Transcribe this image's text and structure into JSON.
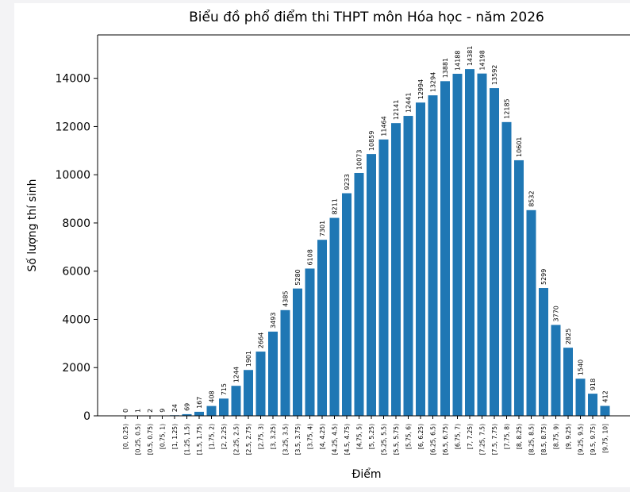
{
  "chart_data": {
    "type": "bar",
    "title": "Biểu đồ phổ điểm thi THPT môn Hóa học - năm 2026",
    "xlabel": "Điểm",
    "ylabel": "Số lượng thí sinh",
    "categories": [
      "[0, 0.25)",
      "[0.25, 0.5)",
      "[0.5, 0.75)",
      "[0.75, 1)",
      "[1, 1.25)",
      "[1.25, 1.5)",
      "[1.5, 1.75)",
      "[1.75, 2)",
      "[2, 2.25)",
      "[2.25, 2.5)",
      "[2.5, 2.75)",
      "[2.75, 3)",
      "[3, 3.25)",
      "[3.25, 3.5)",
      "[3.5, 3.75)",
      "[3.75, 4)",
      "[4, 4.25)",
      "[4.25, 4.5)",
      "[4.5, 4.75)",
      "[4.75, 5)",
      "[5, 5.25)",
      "[5.25, 5.5)",
      "[5.5, 5.75)",
      "[5.75, 6)",
      "[6, 6.25)",
      "[6.25, 6.5)",
      "[6.5, 6.75)",
      "[6.75, 7)",
      "[7, 7.25)",
      "[7.25, 7.5)",
      "[7.5, 7.75)",
      "[7.75, 8)",
      "[8, 8.25)",
      "[8.25, 8.5)",
      "[8.5, 8.75)",
      "[8.75, 9)",
      "[9, 9.25)",
      "[9.25, 9.5)",
      "[9.5, 9.75)",
      "[9.75, 10]"
    ],
    "values": [
      0,
      1,
      2,
      9,
      24,
      69,
      167,
      408,
      715,
      1244,
      1901,
      2664,
      3493,
      4385,
      5280,
      6108,
      7301,
      8211,
      9233,
      10073,
      10859,
      11464,
      12141,
      12441,
      12994,
      13294,
      13881,
      14188,
      14381,
      14198,
      13592,
      12185,
      10601,
      8532,
      5299,
      3770,
      2825,
      1540,
      918,
      412
    ],
    "color": "#1f77b4",
    "ylim": [
      0,
      15800
    ],
    "yticks": [
      0,
      2000,
      4000,
      6000,
      8000,
      10000,
      12000,
      14000
    ]
  }
}
